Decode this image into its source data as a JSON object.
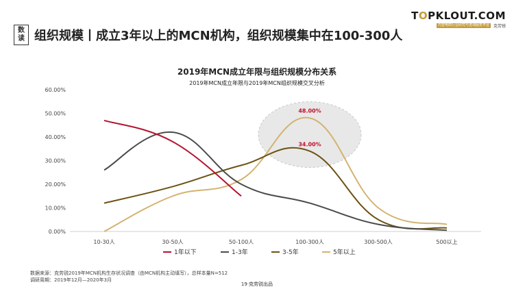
{
  "header": {
    "tag_top": "数",
    "tag_bottom": "读",
    "headline": "组织规模丨成立3年以上的MCN机构，组织规模集中在100-300人"
  },
  "logo": {
    "main_prefix": "T",
    "main_o": "O",
    "main_suffix": "PKLOUT.COM",
    "sub_bar": "内容电商行业研究与咨询服务平台",
    "sub_brand": "克劳锐"
  },
  "chart_data": {
    "type": "line",
    "title": "2019年MCN成立年限与组织规模分布关系",
    "subtitle": "2019年MCN成立年限与2019年MCN组织规模交叉分析",
    "categories": [
      "10-30人",
      "30-50人",
      "50-100人",
      "100-300人",
      "300-500人",
      "500以上"
    ],
    "y_ticks": [
      "0.00%",
      "10.00%",
      "20.00%",
      "30.00%",
      "40.00%",
      "50.00%",
      "60.00%"
    ],
    "ylim": [
      0,
      60
    ],
    "grid": false,
    "legend_position": "bottom",
    "series": [
      {
        "name": "1年以下",
        "color": "#b5122e",
        "values": [
          47,
          38,
          15,
          null,
          null,
          null
        ]
      },
      {
        "name": "1-3年",
        "color": "#4a4a4a",
        "values": [
          26,
          42,
          20,
          12,
          3,
          0.5
        ]
      },
      {
        "name": "3-5年",
        "color": "#6b5212",
        "values": [
          12,
          19,
          28,
          34,
          5,
          1.5
        ]
      },
      {
        "name": "5年以上",
        "color": "#d4b270",
        "values": [
          0,
          15,
          22,
          48,
          10,
          3
        ]
      }
    ],
    "annotations": [
      "48.00%",
      "34.00%"
    ]
  },
  "footer": {
    "source": "数据来源：克劳锐2019年MCN机构生存状况调查（由MCN机构主动填写），总样本量N=512",
    "period": "调研周期：2019年12月—2020年3月",
    "page": "19·克劳锐出品"
  }
}
